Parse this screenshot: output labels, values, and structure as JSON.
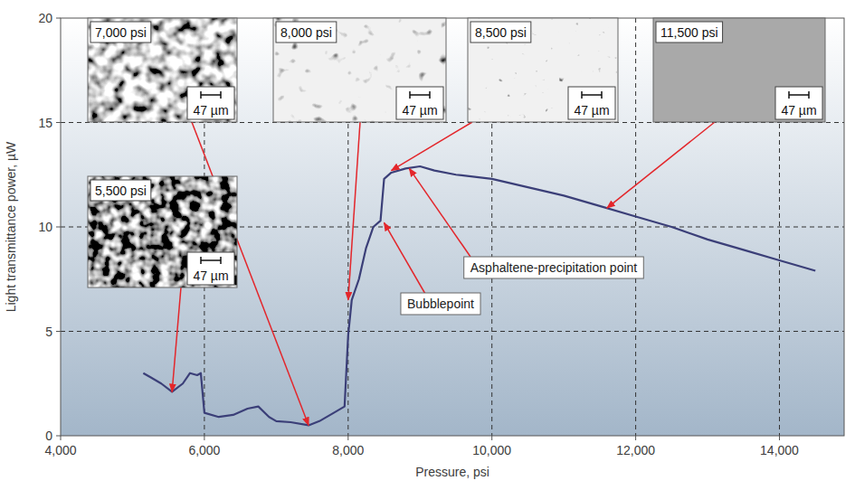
{
  "chart_data": {
    "type": "line",
    "x_label": "Pressure, psi",
    "y_label": "Light transmittance power, µW",
    "xlim": [
      4000,
      14900
    ],
    "ylim": [
      0,
      20
    ],
    "xticks": [
      {
        "value": 4000,
        "label": "4,000"
      },
      {
        "value": 6000,
        "label": "6,000"
      },
      {
        "value": 8000,
        "label": "8,000"
      },
      {
        "value": 10000,
        "label": "10,000"
      },
      {
        "value": 12000,
        "label": "12,000"
      },
      {
        "value": 14000,
        "label": "14,000"
      }
    ],
    "yticks": [
      0,
      5,
      10,
      15,
      20
    ],
    "grid": true,
    "x": [
      5150,
      5250,
      5400,
      5550,
      5700,
      5800,
      5900,
      5950,
      6000,
      6200,
      6400,
      6600,
      6750,
      6900,
      7000,
      7200,
      7450,
      7600,
      7800,
      7950,
      8000,
      8050,
      8150,
      8250,
      8350,
      8450,
      8500,
      8600,
      8800,
      9000,
      9200,
      9500,
      10000,
      10500,
      11000,
      11500,
      12000,
      12500,
      13000,
      13500,
      14000,
      14500
    ],
    "series": [
      {
        "color": "#3b3f78",
        "values": [
          3.0,
          2.8,
          2.5,
          2.1,
          2.5,
          3.0,
          2.9,
          3.0,
          1.1,
          0.9,
          1.0,
          1.3,
          1.4,
          0.9,
          0.7,
          0.65,
          0.5,
          0.7,
          1.1,
          1.4,
          4.8,
          6.5,
          7.5,
          9.0,
          10.0,
          10.3,
          12.3,
          12.6,
          12.8,
          12.9,
          12.7,
          12.5,
          12.3,
          11.9,
          11.5,
          11.0,
          10.5,
          10.0,
          9.4,
          8.9,
          8.4,
          7.9
        ]
      }
    ],
    "annotations": [
      {
        "text": "Bubblepoint",
        "x": 8500,
        "y": 10.2
      },
      {
        "text": "Asphaltene-precipitation point",
        "x": 8850,
        "y": 12.8
      }
    ],
    "insets": [
      {
        "label": "5,500 psi",
        "scale_label": "47 µm",
        "x": 5550,
        "y": 2.1
      },
      {
        "label": "7,000 psi",
        "scale_label": "47 µm",
        "x": 7450,
        "y": 0.5
      },
      {
        "label": "8,000 psi",
        "scale_label": "47 µm",
        "x": 8000,
        "y": 6.5
      },
      {
        "label": "8,500 psi",
        "scale_label": "47 µm",
        "x": 8600,
        "y": 12.7
      },
      {
        "label": "11,500 psi",
        "scale_label": "47 µm",
        "x": 11600,
        "y": 10.9
      }
    ]
  }
}
